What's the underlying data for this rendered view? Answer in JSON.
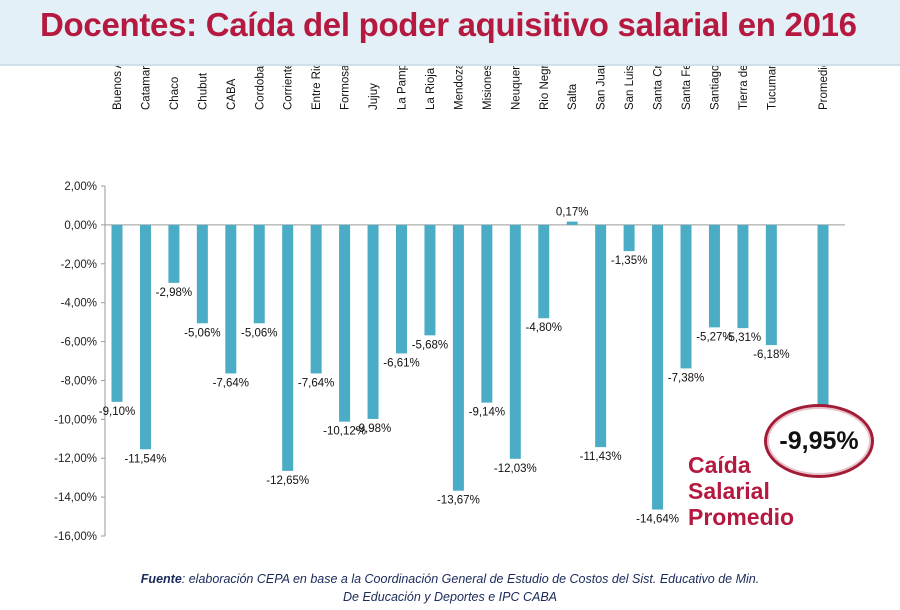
{
  "header": {
    "title": "Docentes: Caída del poder aquisitivo salarial en 2016"
  },
  "chart_data": {
    "type": "bar",
    "categories": [
      "Buenos Aires",
      "Catamarca",
      "Chaco",
      "Chubut",
      "CABA",
      "Cordoba",
      "Corrientes",
      "Entre Rios",
      "Formosa",
      "Jujuy",
      "La Pampa",
      "La Rioja",
      "Mendoza",
      "Misiones",
      "Neuquen",
      "Rio Negro",
      "Salta",
      "San Juan",
      "San Luis",
      "Santa Cruz",
      "Santa Fe",
      "Santiago del Estero",
      "Tierra del Fuego",
      "Tucuman",
      "Promedio"
    ],
    "values": [
      -9.1,
      -11.54,
      -2.98,
      -5.06,
      -7.64,
      -5.06,
      -12.65,
      -7.64,
      -10.12,
      -9.98,
      -6.61,
      -5.68,
      -13.67,
      -9.14,
      -12.03,
      -4.8,
      0.17,
      -11.43,
      -1.35,
      -14.64,
      -7.38,
      -5.27,
      -5.31,
      -6.18,
      -9.95
    ],
    "data_labels": [
      "-9,10%",
      "-11,54%",
      "-2,98%",
      "-5,06%",
      "-7,64%",
      "-5,06%",
      "-12,65%",
      "-7,64%",
      "-10,12%",
      "-9,98%",
      "-6,61%",
      "-5,68%",
      "-13,67%",
      "-9,14%",
      "-12,03%",
      "-4,80%",
      "0,17%",
      "-11,43%",
      "-1,35%",
      "-14,64%",
      "-7,38%",
      "-5,27%",
      "-5,31%",
      "-6,18%",
      ""
    ],
    "yticks": [
      "2,00%",
      "0,00%",
      "-2,00%",
      "-4,00%",
      "-6,00%",
      "-8,00%",
      "-10,00%",
      "-12,00%",
      "-14,00%",
      "-16,00%"
    ],
    "ylim": [
      -16,
      2
    ],
    "grid": false,
    "bar_color": "#4bacc6",
    "title": "",
    "xlabel": "",
    "ylabel": ""
  },
  "callout": {
    "value": "-9,95%",
    "lines": [
      "Caída",
      "Salarial",
      "Promedio"
    ],
    "color": "#b5193f"
  },
  "source": {
    "label": "Fuente",
    "line1": ": elaboración CEPA en base a la Coordinación General de Estudio de Costos del Sist. Educativo de Min.",
    "line2": "De Educación y Deportes e IPC CABA"
  }
}
